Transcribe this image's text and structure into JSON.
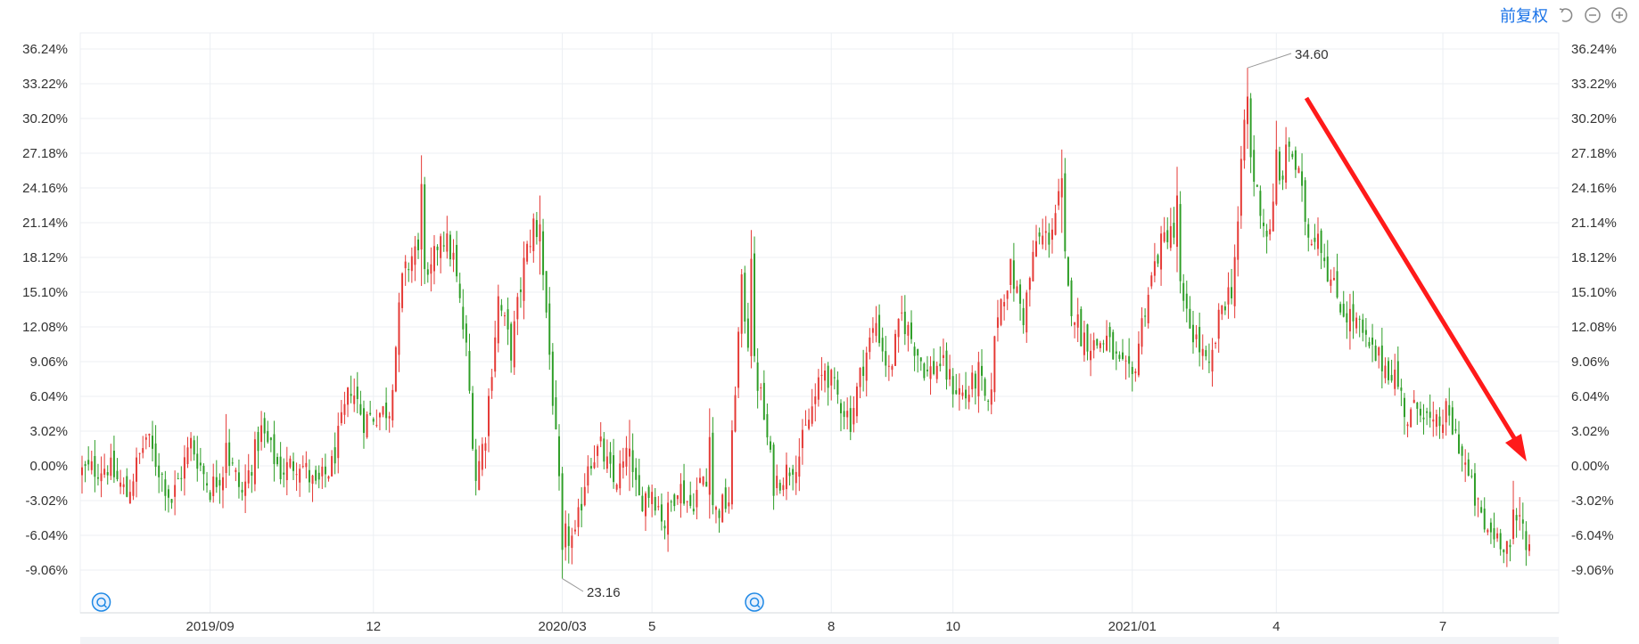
{
  "toolbar": {
    "fuquan_label": "前复权",
    "icons": [
      "undo-icon",
      "zoom-out-icon",
      "zoom-in-icon"
    ]
  },
  "colors": {
    "up": "#e53935",
    "down": "#2e9e27",
    "grid": "#eceff3",
    "arrow": "#ff1a1a",
    "marker": "#1e88e5"
  },
  "chart_data": {
    "type": "candlestick",
    "y_unit": "%",
    "ylim": [
      -10.5,
      37.5
    ],
    "y_ticks": [
      36.24,
      33.22,
      30.2,
      27.18,
      24.16,
      21.14,
      18.12,
      15.1,
      12.08,
      9.06,
      6.04,
      3.02,
      0.0,
      -3.02,
      -6.04,
      -9.06
    ],
    "y_tick_labels": [
      "36.24%",
      "33.22%",
      "30.20%",
      "27.18%",
      "24.16%",
      "21.14%",
      "18.12%",
      "15.10%",
      "12.08%",
      "9.06%",
      "6.04%",
      "3.02%",
      "0.00%",
      "-3.02%",
      "-6.04%",
      "-9.06%"
    ],
    "x_ticks": [
      "2019/09",
      "12",
      "2020/03",
      "5",
      "8",
      "10",
      "2021/01",
      "4",
      "7"
    ],
    "annotations": {
      "max_label": "34.60",
      "min_label": "23.16"
    },
    "close_path": [
      [
        0,
        -0.5
      ],
      [
        8,
        0.0
      ],
      [
        14,
        -2.5
      ],
      [
        20,
        2.5
      ],
      [
        28,
        -3.0
      ],
      [
        34,
        2.0
      ],
      [
        40,
        -2.0
      ],
      [
        46,
        0.5
      ],
      [
        50,
        -2.5
      ],
      [
        56,
        3.0
      ],
      [
        62,
        -0.5
      ],
      [
        68,
        0.5
      ],
      [
        73,
        -2.0
      ],
      [
        78,
        0.0
      ],
      [
        84,
        7.0
      ],
      [
        88,
        4.0
      ],
      [
        96,
        5.0
      ],
      [
        100,
        16.0
      ],
      [
        104,
        19.0
      ],
      [
        108,
        15.5
      ],
      [
        112,
        20.5
      ],
      [
        116,
        18.0
      ],
      [
        120,
        10.0
      ],
      [
        123,
        -1.0
      ],
      [
        126,
        3.0
      ],
      [
        130,
        14.5
      ],
      [
        134,
        10.0
      ],
      [
        138,
        17.5
      ],
      [
        141,
        21.0
      ],
      [
        144,
        17.0
      ],
      [
        147,
        6.0
      ],
      [
        150,
        -6.0
      ],
      [
        154,
        -6.5
      ],
      [
        158,
        0.5
      ],
      [
        162,
        1.5
      ],
      [
        166,
        -1.5
      ],
      [
        170,
        0.5
      ],
      [
        174,
        -3.0
      ],
      [
        178,
        -2.0
      ],
      [
        182,
        -5.0
      ],
      [
        186,
        -1.5
      ],
      [
        190,
        -3.5
      ],
      [
        194,
        -1.0
      ],
      [
        198,
        -4.0
      ],
      [
        202,
        -3.0
      ],
      [
        204,
        7.0
      ],
      [
        206,
        15.5
      ],
      [
        208,
        11.0
      ],
      [
        212,
        6.0
      ],
      [
        216,
        -1.5
      ],
      [
        220,
        -0.5
      ],
      [
        224,
        1.0
      ],
      [
        228,
        5.0
      ],
      [
        232,
        8.5
      ],
      [
        236,
        6.0
      ],
      [
        240,
        4.0
      ],
      [
        244,
        9.0
      ],
      [
        248,
        12.5
      ],
      [
        252,
        8.0
      ],
      [
        256,
        13.0
      ],
      [
        260,
        10.5
      ],
      [
        264,
        8.0
      ],
      [
        268,
        9.0
      ],
      [
        272,
        7.0
      ],
      [
        276,
        6.0
      ],
      [
        280,
        8.0
      ],
      [
        283,
        4.5
      ],
      [
        286,
        13.5
      ],
      [
        290,
        17.0
      ],
      [
        294,
        13.0
      ],
      [
        298,
        19.5
      ],
      [
        302,
        20.0
      ],
      [
        305,
        23.0
      ],
      [
        308,
        15.0
      ],
      [
        312,
        11.5
      ],
      [
        316,
        10.5
      ],
      [
        320,
        11.0
      ],
      [
        324,
        8.5
      ],
      [
        328,
        7.5
      ],
      [
        332,
        14.0
      ],
      [
        336,
        18.5
      ],
      [
        340,
        21.0
      ],
      [
        344,
        13.5
      ],
      [
        348,
        11.0
      ],
      [
        352,
        8.0
      ],
      [
        356,
        14.0
      ],
      [
        359,
        15.5
      ],
      [
        361,
        21.0
      ],
      [
        363,
        30.0
      ],
      [
        366,
        25.0
      ],
      [
        370,
        20.0
      ],
      [
        374,
        24.5
      ],
      [
        377,
        28.0
      ],
      [
        380,
        25.0
      ],
      [
        383,
        20.0
      ],
      [
        386,
        20.5
      ],
      [
        390,
        16.0
      ],
      [
        394,
        13.5
      ],
      [
        398,
        12.5
      ],
      [
        402,
        10.0
      ],
      [
        406,
        9.0
      ],
      [
        410,
        8.0
      ],
      [
        414,
        4.0
      ],
      [
        418,
        5.5
      ],
      [
        422,
        3.0
      ],
      [
        426,
        4.5
      ],
      [
        430,
        2.0
      ],
      [
        434,
        -2.0
      ],
      [
        438,
        -5.5
      ],
      [
        442,
        -6.0
      ],
      [
        446,
        -7.0
      ],
      [
        449,
        -4.5
      ],
      [
        452,
        -7.0
      ]
    ],
    "spikes": [
      {
        "t": 45,
        "high": 4.5
      },
      {
        "t": 106,
        "high": 27.0
      },
      {
        "t": 143,
        "high": 23.5
      },
      {
        "t": 150,
        "low": -9.8
      },
      {
        "t": 171,
        "high": 4.0
      },
      {
        "t": 196,
        "high": 5.0
      },
      {
        "t": 209,
        "high": 20.5
      },
      {
        "t": 290,
        "high": 15.0
      },
      {
        "t": 306,
        "high": 27.5
      },
      {
        "t": 342,
        "high": 26.0
      },
      {
        "t": 364,
        "high": 34.6
      },
      {
        "t": 373,
        "high": 30.0
      },
      {
        "t": 445,
        "low": -8.8
      },
      {
        "t": 447,
        "high": -1.3
      }
    ],
    "event_markers": [
      6,
      210
    ]
  }
}
